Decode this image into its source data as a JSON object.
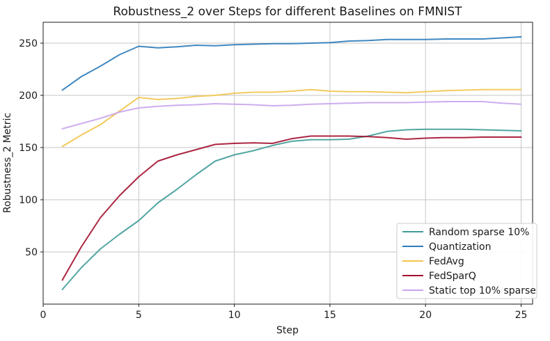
{
  "chart_data": {
    "type": "line",
    "title": "Robustness_2 over Steps for different Baselines on FMNIST",
    "xlabel": "Step",
    "ylabel": "Robustness_2 Metric",
    "xlim": [
      0,
      25.6
    ],
    "ylim": [
      0,
      270
    ],
    "xticks": [
      0,
      5,
      10,
      15,
      20,
      25
    ],
    "yticks": [
      50,
      100,
      150,
      200,
      250
    ],
    "grid": true,
    "legend_position": "lower right",
    "x": [
      1,
      2,
      3,
      4,
      5,
      6,
      7,
      8,
      9,
      10,
      11,
      12,
      13,
      14,
      15,
      16,
      17,
      18,
      19,
      20,
      21,
      22,
      23,
      24,
      25
    ],
    "series": [
      {
        "name": "Random sparse 10%",
        "color": "#3f9c98",
        "values": [
          14,
          35,
          53,
          67,
          80,
          97,
          110,
          124,
          137,
          143,
          147,
          152,
          156,
          157.5,
          157.5,
          158,
          161,
          165.5,
          167,
          167.5,
          167.5,
          167.5,
          167,
          166.5,
          166
        ]
      },
      {
        "name": "Quantization",
        "color": "#2b7bba",
        "values": [
          205,
          218,
          228,
          239,
          247,
          245.5,
          246.5,
          248,
          247.5,
          248.5,
          249,
          249.5,
          249.5,
          250,
          250.5,
          252,
          252.5,
          253.5,
          253.5,
          253.5,
          254,
          254,
          254,
          255,
          256
        ]
      },
      {
        "name": "FedAvg",
        "color": "#f2c44d",
        "values": [
          151,
          162,
          172,
          185,
          198,
          196,
          197,
          199,
          200,
          202,
          203,
          203,
          204,
          205.5,
          204,
          203.5,
          203.5,
          203,
          202.5,
          203.5,
          204.5,
          205,
          205.5,
          205.5,
          205.5
        ]
      },
      {
        "name": "FedSparQ",
        "color": "#a30d2e",
        "values": [
          23,
          55,
          83,
          104,
          122,
          137,
          143,
          148,
          153,
          154,
          154.5,
          154,
          158.5,
          161,
          161,
          161,
          160.5,
          159.5,
          158,
          159,
          159.5,
          159.5,
          160,
          160,
          160
        ]
      },
      {
        "name": "Static top 10% sparse",
        "color": "#c8a4ed",
        "values": [
          168,
          173,
          178,
          184,
          188,
          189.5,
          190.5,
          191,
          192,
          191.5,
          191,
          190,
          190.5,
          191.5,
          192,
          192.5,
          193,
          193,
          193,
          193.5,
          194,
          194,
          194,
          192.5,
          191.5
        ]
      }
    ]
  },
  "styles": {
    "background": "#ffffff",
    "grid_color": "#c6c6c6",
    "spine_color": "#1a1a1a",
    "text_color": "#1a1a1a",
    "legend_border": "#cccccc",
    "line_opacity": 0.9
  }
}
